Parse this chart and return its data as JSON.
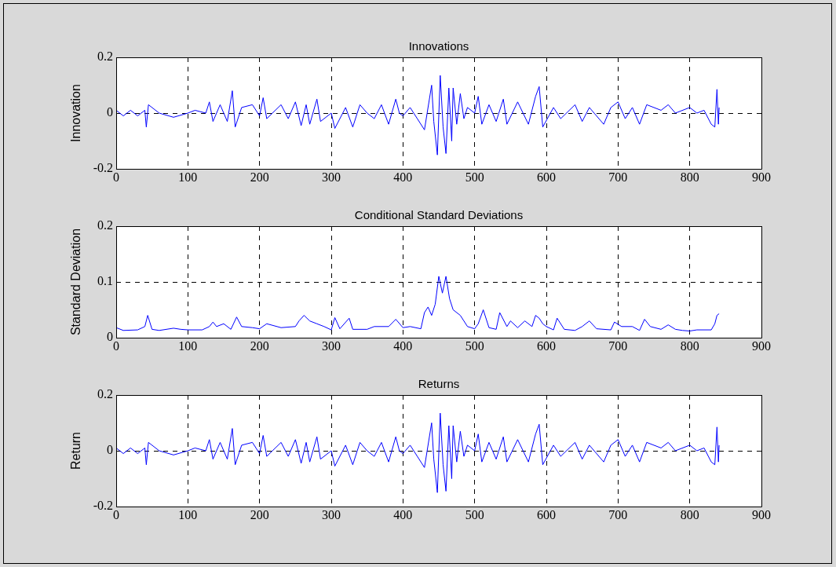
{
  "chart_data": [
    {
      "type": "line",
      "title": "Innovations",
      "ylabel": "Innovation",
      "grid": true,
      "xlim": [
        0,
        900
      ],
      "xticks": [
        0,
        100,
        200,
        300,
        400,
        500,
        600,
        700,
        800,
        900
      ],
      "ylim": [
        -0.2,
        0.2
      ],
      "yticks": [
        -0.2,
        0,
        0.2
      ],
      "x": [
        0,
        10,
        20,
        30,
        40,
        42,
        45,
        60,
        80,
        100,
        110,
        125,
        130,
        135,
        145,
        155,
        162,
        166,
        175,
        190,
        200,
        205,
        210,
        230,
        240,
        250,
        258,
        265,
        270,
        280,
        285,
        300,
        305,
        320,
        330,
        340,
        350,
        360,
        370,
        380,
        390,
        395,
        400,
        410,
        420,
        430,
        440,
        443,
        448,
        452,
        456,
        460,
        464,
        468,
        470,
        475,
        480,
        485,
        490,
        500,
        505,
        510,
        520,
        530,
        540,
        545,
        560,
        575,
        585,
        590,
        595,
        610,
        620,
        640,
        650,
        660,
        680,
        690,
        700,
        710,
        720,
        730,
        740,
        760,
        770,
        780,
        800,
        810,
        820,
        830,
        835,
        838,
        840,
        841
      ],
      "series": [
        {
          "color": "#0000ff",
          "values": [
            0.01,
            -0.01,
            0.01,
            -0.01,
            0.01,
            -0.05,
            0.03,
            0.0,
            -0.015,
            0.0,
            0.01,
            0.0,
            0.04,
            -0.03,
            0.03,
            -0.03,
            0.08,
            -0.05,
            0.02,
            0.03,
            -0.01,
            0.055,
            -0.02,
            0.03,
            -0.02,
            0.04,
            -0.045,
            0.03,
            -0.04,
            0.05,
            -0.03,
            0.0,
            -0.055,
            0.02,
            -0.05,
            0.03,
            0.0,
            -0.02,
            0.03,
            -0.04,
            0.05,
            0.0,
            -0.01,
            0.02,
            -0.02,
            -0.06,
            0.1,
            -0.03,
            -0.15,
            0.135,
            -0.05,
            -0.145,
            0.09,
            -0.1,
            0.09,
            -0.04,
            0.07,
            -0.02,
            0.02,
            0.0,
            0.06,
            -0.04,
            0.03,
            -0.03,
            0.05,
            -0.04,
            0.04,
            -0.04,
            0.06,
            0.095,
            -0.05,
            0.02,
            -0.02,
            0.03,
            -0.03,
            0.02,
            -0.04,
            0.02,
            0.04,
            -0.02,
            0.02,
            -0.04,
            0.03,
            0.01,
            0.03,
            0.0,
            0.02,
            0.0,
            0.01,
            -0.04,
            -0.05,
            0.085,
            -0.04,
            0.02
          ]
        }
      ]
    },
    {
      "type": "line",
      "title": "Conditional Standard Deviations",
      "ylabel": "Standard Deviation",
      "grid": true,
      "xlim": [
        0,
        900
      ],
      "xticks": [
        0,
        100,
        200,
        300,
        400,
        500,
        600,
        700,
        800,
        900
      ],
      "ylim": [
        0,
        0.2
      ],
      "yticks": [
        0,
        0.1,
        0.2
      ],
      "x": [
        0,
        10,
        30,
        40,
        44,
        50,
        60,
        80,
        90,
        100,
        120,
        130,
        135,
        140,
        150,
        160,
        168,
        175,
        190,
        200,
        210,
        230,
        250,
        255,
        262,
        270,
        280,
        290,
        300,
        305,
        312,
        325,
        330,
        350,
        360,
        380,
        390,
        400,
        410,
        425,
        430,
        435,
        440,
        445,
        450,
        455,
        460,
        465,
        470,
        480,
        490,
        500,
        505,
        512,
        520,
        530,
        535,
        545,
        550,
        560,
        570,
        580,
        585,
        590,
        595,
        600,
        610,
        615,
        625,
        640,
        650,
        660,
        670,
        690,
        695,
        705,
        720,
        730,
        737,
        745,
        760,
        770,
        780,
        790,
        800,
        810,
        830,
        835,
        838,
        841
      ],
      "series": [
        {
          "color": "#0000ff",
          "values": [
            0.018,
            0.013,
            0.014,
            0.02,
            0.04,
            0.015,
            0.013,
            0.017,
            0.015,
            0.014,
            0.014,
            0.02,
            0.028,
            0.02,
            0.025,
            0.015,
            0.037,
            0.02,
            0.018,
            0.016,
            0.025,
            0.018,
            0.02,
            0.03,
            0.04,
            0.03,
            0.025,
            0.02,
            0.014,
            0.036,
            0.016,
            0.035,
            0.015,
            0.015,
            0.02,
            0.02,
            0.033,
            0.018,
            0.02,
            0.016,
            0.045,
            0.055,
            0.04,
            0.06,
            0.11,
            0.08,
            0.11,
            0.07,
            0.05,
            0.04,
            0.02,
            0.016,
            0.025,
            0.05,
            0.018,
            0.015,
            0.045,
            0.02,
            0.03,
            0.018,
            0.03,
            0.02,
            0.04,
            0.035,
            0.025,
            0.02,
            0.014,
            0.035,
            0.015,
            0.013,
            0.02,
            0.03,
            0.016,
            0.014,
            0.028,
            0.02,
            0.02,
            0.013,
            0.033,
            0.02,
            0.015,
            0.023,
            0.015,
            0.013,
            0.012,
            0.014,
            0.014,
            0.025,
            0.04,
            0.043
          ]
        }
      ]
    },
    {
      "type": "line",
      "title": "Returns",
      "ylabel": "Return",
      "grid": true,
      "xlim": [
        0,
        900
      ],
      "xticks": [
        0,
        100,
        200,
        300,
        400,
        500,
        600,
        700,
        800,
        900
      ],
      "ylim": [
        -0.2,
        0.2
      ],
      "yticks": [
        -0.2,
        0,
        0.2
      ],
      "x": [
        0,
        10,
        20,
        30,
        40,
        42,
        45,
        60,
        80,
        100,
        110,
        125,
        130,
        135,
        145,
        155,
        162,
        166,
        175,
        190,
        200,
        205,
        210,
        230,
        240,
        250,
        258,
        265,
        270,
        280,
        285,
        300,
        305,
        320,
        330,
        340,
        350,
        360,
        370,
        380,
        390,
        395,
        400,
        410,
        420,
        430,
        440,
        443,
        448,
        452,
        456,
        460,
        464,
        468,
        470,
        475,
        480,
        485,
        490,
        500,
        505,
        510,
        520,
        530,
        540,
        545,
        560,
        575,
        585,
        590,
        595,
        610,
        620,
        640,
        650,
        660,
        680,
        690,
        700,
        710,
        720,
        730,
        740,
        760,
        770,
        780,
        800,
        810,
        820,
        830,
        835,
        838,
        840,
        841
      ],
      "series": [
        {
          "color": "#0000ff",
          "values": [
            0.01,
            -0.01,
            0.01,
            -0.01,
            0.01,
            -0.05,
            0.03,
            0.0,
            -0.015,
            0.0,
            0.01,
            0.0,
            0.04,
            -0.03,
            0.03,
            -0.03,
            0.08,
            -0.05,
            0.02,
            0.03,
            -0.01,
            0.055,
            -0.02,
            0.03,
            -0.02,
            0.04,
            -0.045,
            0.03,
            -0.04,
            0.05,
            -0.03,
            0.0,
            -0.055,
            0.02,
            -0.05,
            0.03,
            0.0,
            -0.02,
            0.03,
            -0.04,
            0.05,
            0.0,
            -0.01,
            0.02,
            -0.02,
            -0.06,
            0.1,
            -0.03,
            -0.15,
            0.135,
            -0.05,
            -0.145,
            0.09,
            -0.1,
            0.09,
            -0.04,
            0.07,
            -0.02,
            0.02,
            0.0,
            0.06,
            -0.04,
            0.03,
            -0.03,
            0.05,
            -0.04,
            0.04,
            -0.04,
            0.06,
            0.095,
            -0.05,
            0.02,
            -0.02,
            0.03,
            -0.03,
            0.02,
            -0.04,
            0.02,
            0.04,
            -0.02,
            0.02,
            -0.04,
            0.03,
            0.01,
            0.03,
            0.0,
            0.02,
            0.0,
            0.01,
            -0.04,
            -0.05,
            0.085,
            -0.04,
            0.02
          ]
        }
      ]
    }
  ]
}
